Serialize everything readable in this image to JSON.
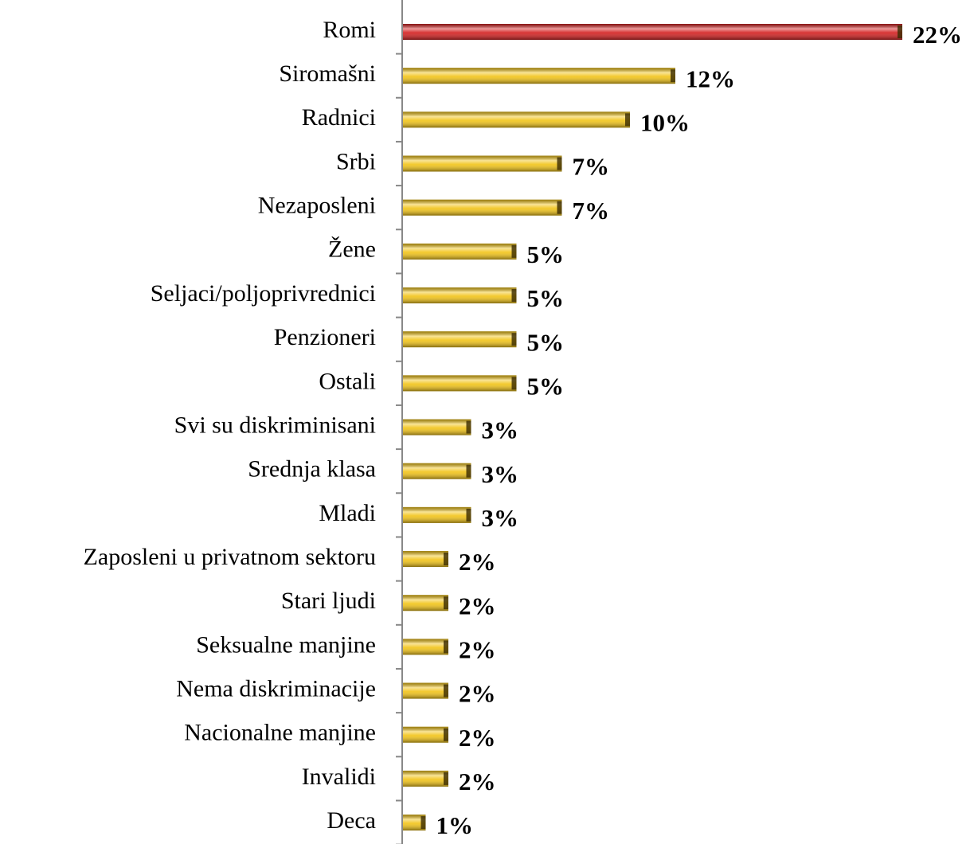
{
  "chart_data": {
    "type": "bar",
    "orientation": "horizontal",
    "categories": [
      "Romi",
      "Siromašni",
      "Radnici",
      "Srbi",
      "Nezaposleni",
      "Žene",
      "Seljaci/poljoprivrednici",
      "Penzioneri",
      "Ostali",
      "Svi su diskriminisani",
      "Srednja klasa",
      "Mladi",
      "Zaposleni u privatnom sektoru",
      "Stari ljudi",
      "Seksualne manjine",
      "Nema diskriminacije",
      "Nacionalne manjine",
      "Invalidi",
      "Deca"
    ],
    "values": [
      22,
      12,
      10,
      7,
      7,
      5,
      5,
      5,
      5,
      3,
      3,
      3,
      2,
      2,
      2,
      2,
      2,
      2,
      1
    ],
    "value_labels": [
      "22%",
      "12%",
      "10%",
      "7%",
      "7%",
      "5%",
      "5%",
      "5%",
      "5%",
      "3%",
      "3%",
      "3%",
      "2%",
      "2%",
      "2%",
      "2%",
      "2%",
      "2%",
      "1%"
    ],
    "colors": [
      "#d42020",
      "#f2c418",
      "#f2c418",
      "#f2c418",
      "#f2c418",
      "#f2c418",
      "#f2c418",
      "#f2c418",
      "#f2c418",
      "#f2c418",
      "#f2c418",
      "#f2c418",
      "#f2c418",
      "#f2c418",
      "#f2c418",
      "#f2c418",
      "#f2c418",
      "#f2c418",
      "#f2c418"
    ]
  }
}
